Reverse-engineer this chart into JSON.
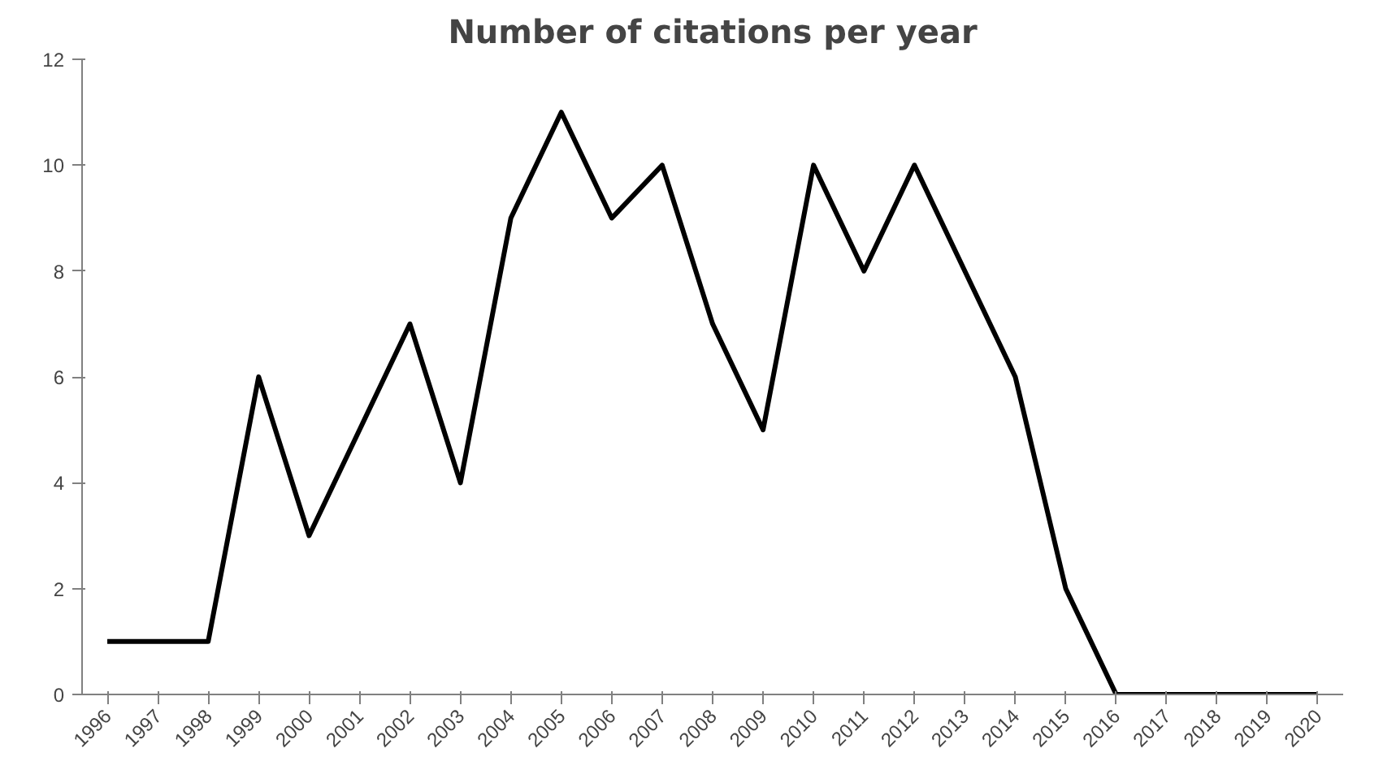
{
  "chart_data": {
    "type": "line",
    "title": "Number of citations per year",
    "categories": [
      "1996",
      "1997",
      "1998",
      "1999",
      "2000",
      "2001",
      "2002",
      "2003",
      "2004",
      "2005",
      "2006",
      "2007",
      "2008",
      "2009",
      "2010",
      "2011",
      "2012",
      "2013",
      "2014",
      "2015",
      "2016",
      "2017",
      "2018",
      "2019",
      "2020"
    ],
    "series": [
      {
        "color": "#000000",
        "values": [
          1,
          1,
          1,
          6,
          3,
          5,
          7,
          4,
          9,
          11,
          9,
          10,
          7,
          5,
          10,
          8,
          10,
          8,
          6,
          2,
          0,
          0,
          0,
          0,
          0
        ]
      }
    ],
    "ylim": [
      0,
      12
    ],
    "yticks": [
      0,
      2,
      4,
      6,
      8,
      10,
      12
    ],
    "grid": false,
    "marker": "none",
    "line_style": "solid"
  }
}
